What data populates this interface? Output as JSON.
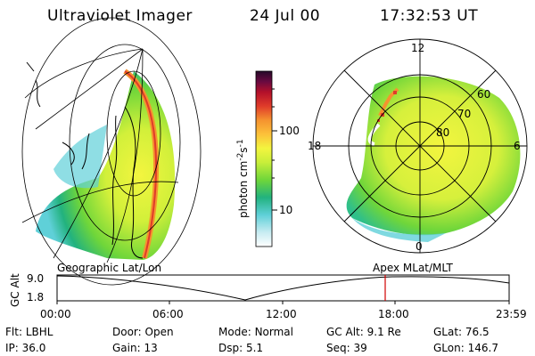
{
  "header": {
    "title": "Ultraviolet Imager",
    "date": "24 Jul 00",
    "time": "17:32:53 UT"
  },
  "colorbar": {
    "label": "photon cm",
    "label_exp1": "-2",
    "label_mid": "s",
    "label_exp2": "-1",
    "tick_high": "100",
    "tick_low": "10",
    "colors": [
      "#ffffff",
      "#c8ecf2",
      "#5fd0d8",
      "#22b27e",
      "#6fd63a",
      "#c8ee3a",
      "#f3f53f",
      "#fcc13a",
      "#f5932f",
      "#e03c2a",
      "#b4102a",
      "#6a0a40",
      "#250a2a"
    ]
  },
  "left_panel": {
    "caption": "Geographic Lat/Lon"
  },
  "right_panel": {
    "caption": "Apex MLat/MLT",
    "mlt_labels": {
      "top": "12",
      "left": "18",
      "right": "6",
      "bottom": "0"
    },
    "lat_labels": [
      "60",
      "70",
      "80"
    ]
  },
  "timeline": {
    "ylabel": "GC Alt",
    "y_ticks": [
      "9.0",
      "1.8"
    ],
    "x_ticks": [
      "00:00",
      "06:00",
      "12:00",
      "18:00",
      "23:59"
    ],
    "marker_time": "17:32:53"
  },
  "info": {
    "row1": [
      {
        "label": "Flt:",
        "value": "LBHL"
      },
      {
        "label": "Door:",
        "value": "Open"
      },
      {
        "label": "Mode:",
        "value": "Normal"
      },
      {
        "label": "GC Alt:",
        "value": "9.1 Re"
      },
      {
        "label": "GLat:",
        "value": "76.5"
      }
    ],
    "row2": [
      {
        "label": "IP:",
        "value": "36.0"
      },
      {
        "label": "Gain:",
        "value": "13"
      },
      {
        "label": "Dsp:",
        "value": "5.1"
      },
      {
        "label": "Seq:",
        "value": "39"
      },
      {
        "label": "GLon:",
        "value": "146.7"
      }
    ]
  }
}
